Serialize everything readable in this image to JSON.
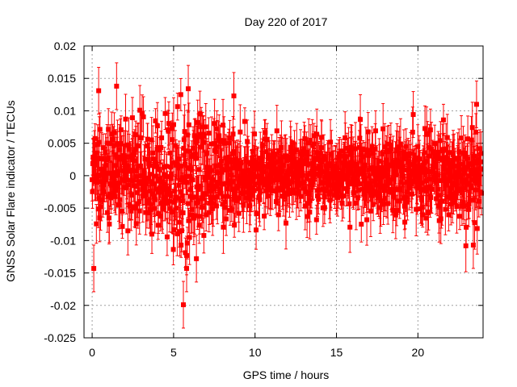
{
  "chart_data": {
    "type": "scatter",
    "title": "Day 220 of 2017",
    "xlabel": "GPS time / hours",
    "ylabel": "GNSS Solar Flare indicator / TECUs",
    "xlim": [
      -0.5,
      24
    ],
    "ylim": [
      -0.025,
      0.02
    ],
    "x_ticks": [
      0,
      5,
      10,
      15,
      20
    ],
    "x_tick_labels": [
      "0",
      "5",
      "10",
      "15",
      "20"
    ],
    "y_ticks": [
      -0.025,
      -0.02,
      -0.015,
      -0.01,
      -0.005,
      0,
      0.005,
      0.01,
      0.015,
      0.02
    ],
    "y_tick_labels": [
      "-0.025",
      "-0.02",
      "-0.015",
      "-0.01",
      "-0.005",
      "0",
      "0.005",
      "0.01",
      "0.015",
      "0.02"
    ],
    "grid": true,
    "marker_color": "#ff0000",
    "series": [
      {
        "name": "GNSS solar flare indicator",
        "x_start": 0,
        "x_end": 23.9,
        "n_points": 1200,
        "noise_envelope": [
          {
            "x": 0.0,
            "std": 0.0042
          },
          {
            "x": 2.0,
            "std": 0.0038
          },
          {
            "x": 4.0,
            "std": 0.004
          },
          {
            "x": 5.5,
            "std": 0.0048
          },
          {
            "x": 7.0,
            "std": 0.004
          },
          {
            "x": 9.0,
            "std": 0.0032
          },
          {
            "x": 10.0,
            "std": 0.0024
          },
          {
            "x": 13.0,
            "std": 0.0026
          },
          {
            "x": 16.0,
            "std": 0.0028
          },
          {
            "x": 20.0,
            "std": 0.003
          },
          {
            "x": 22.5,
            "std": 0.0036
          },
          {
            "x": 23.9,
            "std": 0.0042
          }
        ],
        "error_bar_typical": 0.003,
        "notable_points": [
          {
            "x": 0.1,
            "y": -0.0143
          },
          {
            "x": 0.4,
            "y": 0.0131
          },
          {
            "x": 1.5,
            "y": 0.0138
          },
          {
            "x": 5.6,
            "y": -0.0199
          },
          {
            "x": 5.9,
            "y": 0.0134
          },
          {
            "x": 5.8,
            "y": -0.0143
          },
          {
            "x": 6.4,
            "y": -0.0128
          },
          {
            "x": 8.7,
            "y": 0.0123
          },
          {
            "x": 23.4,
            "y": -0.0107
          },
          {
            "x": 23.6,
            "y": 0.011
          }
        ]
      }
    ]
  }
}
